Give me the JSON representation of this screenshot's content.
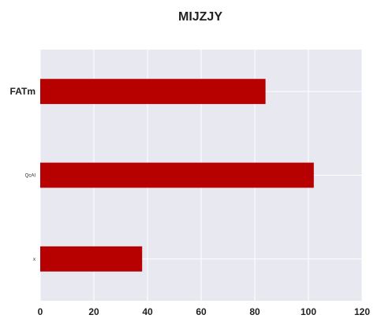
{
  "chart_data": {
    "type": "bar",
    "orientation": "horizontal",
    "title": "MIJZJY",
    "xlabel": "",
    "ylabel": "",
    "categories": [
      "FATm",
      "QcAI",
      "x"
    ],
    "values": [
      84,
      102,
      38
    ],
    "xlim": [
      0,
      120
    ],
    "xticks": [
      0,
      20,
      40,
      60,
      80,
      100,
      120
    ],
    "grid": true,
    "legend": "none",
    "colors": {
      "bar": "#b70000",
      "plot_background": "#e8e8f0",
      "grid": "#ffffff"
    }
  }
}
